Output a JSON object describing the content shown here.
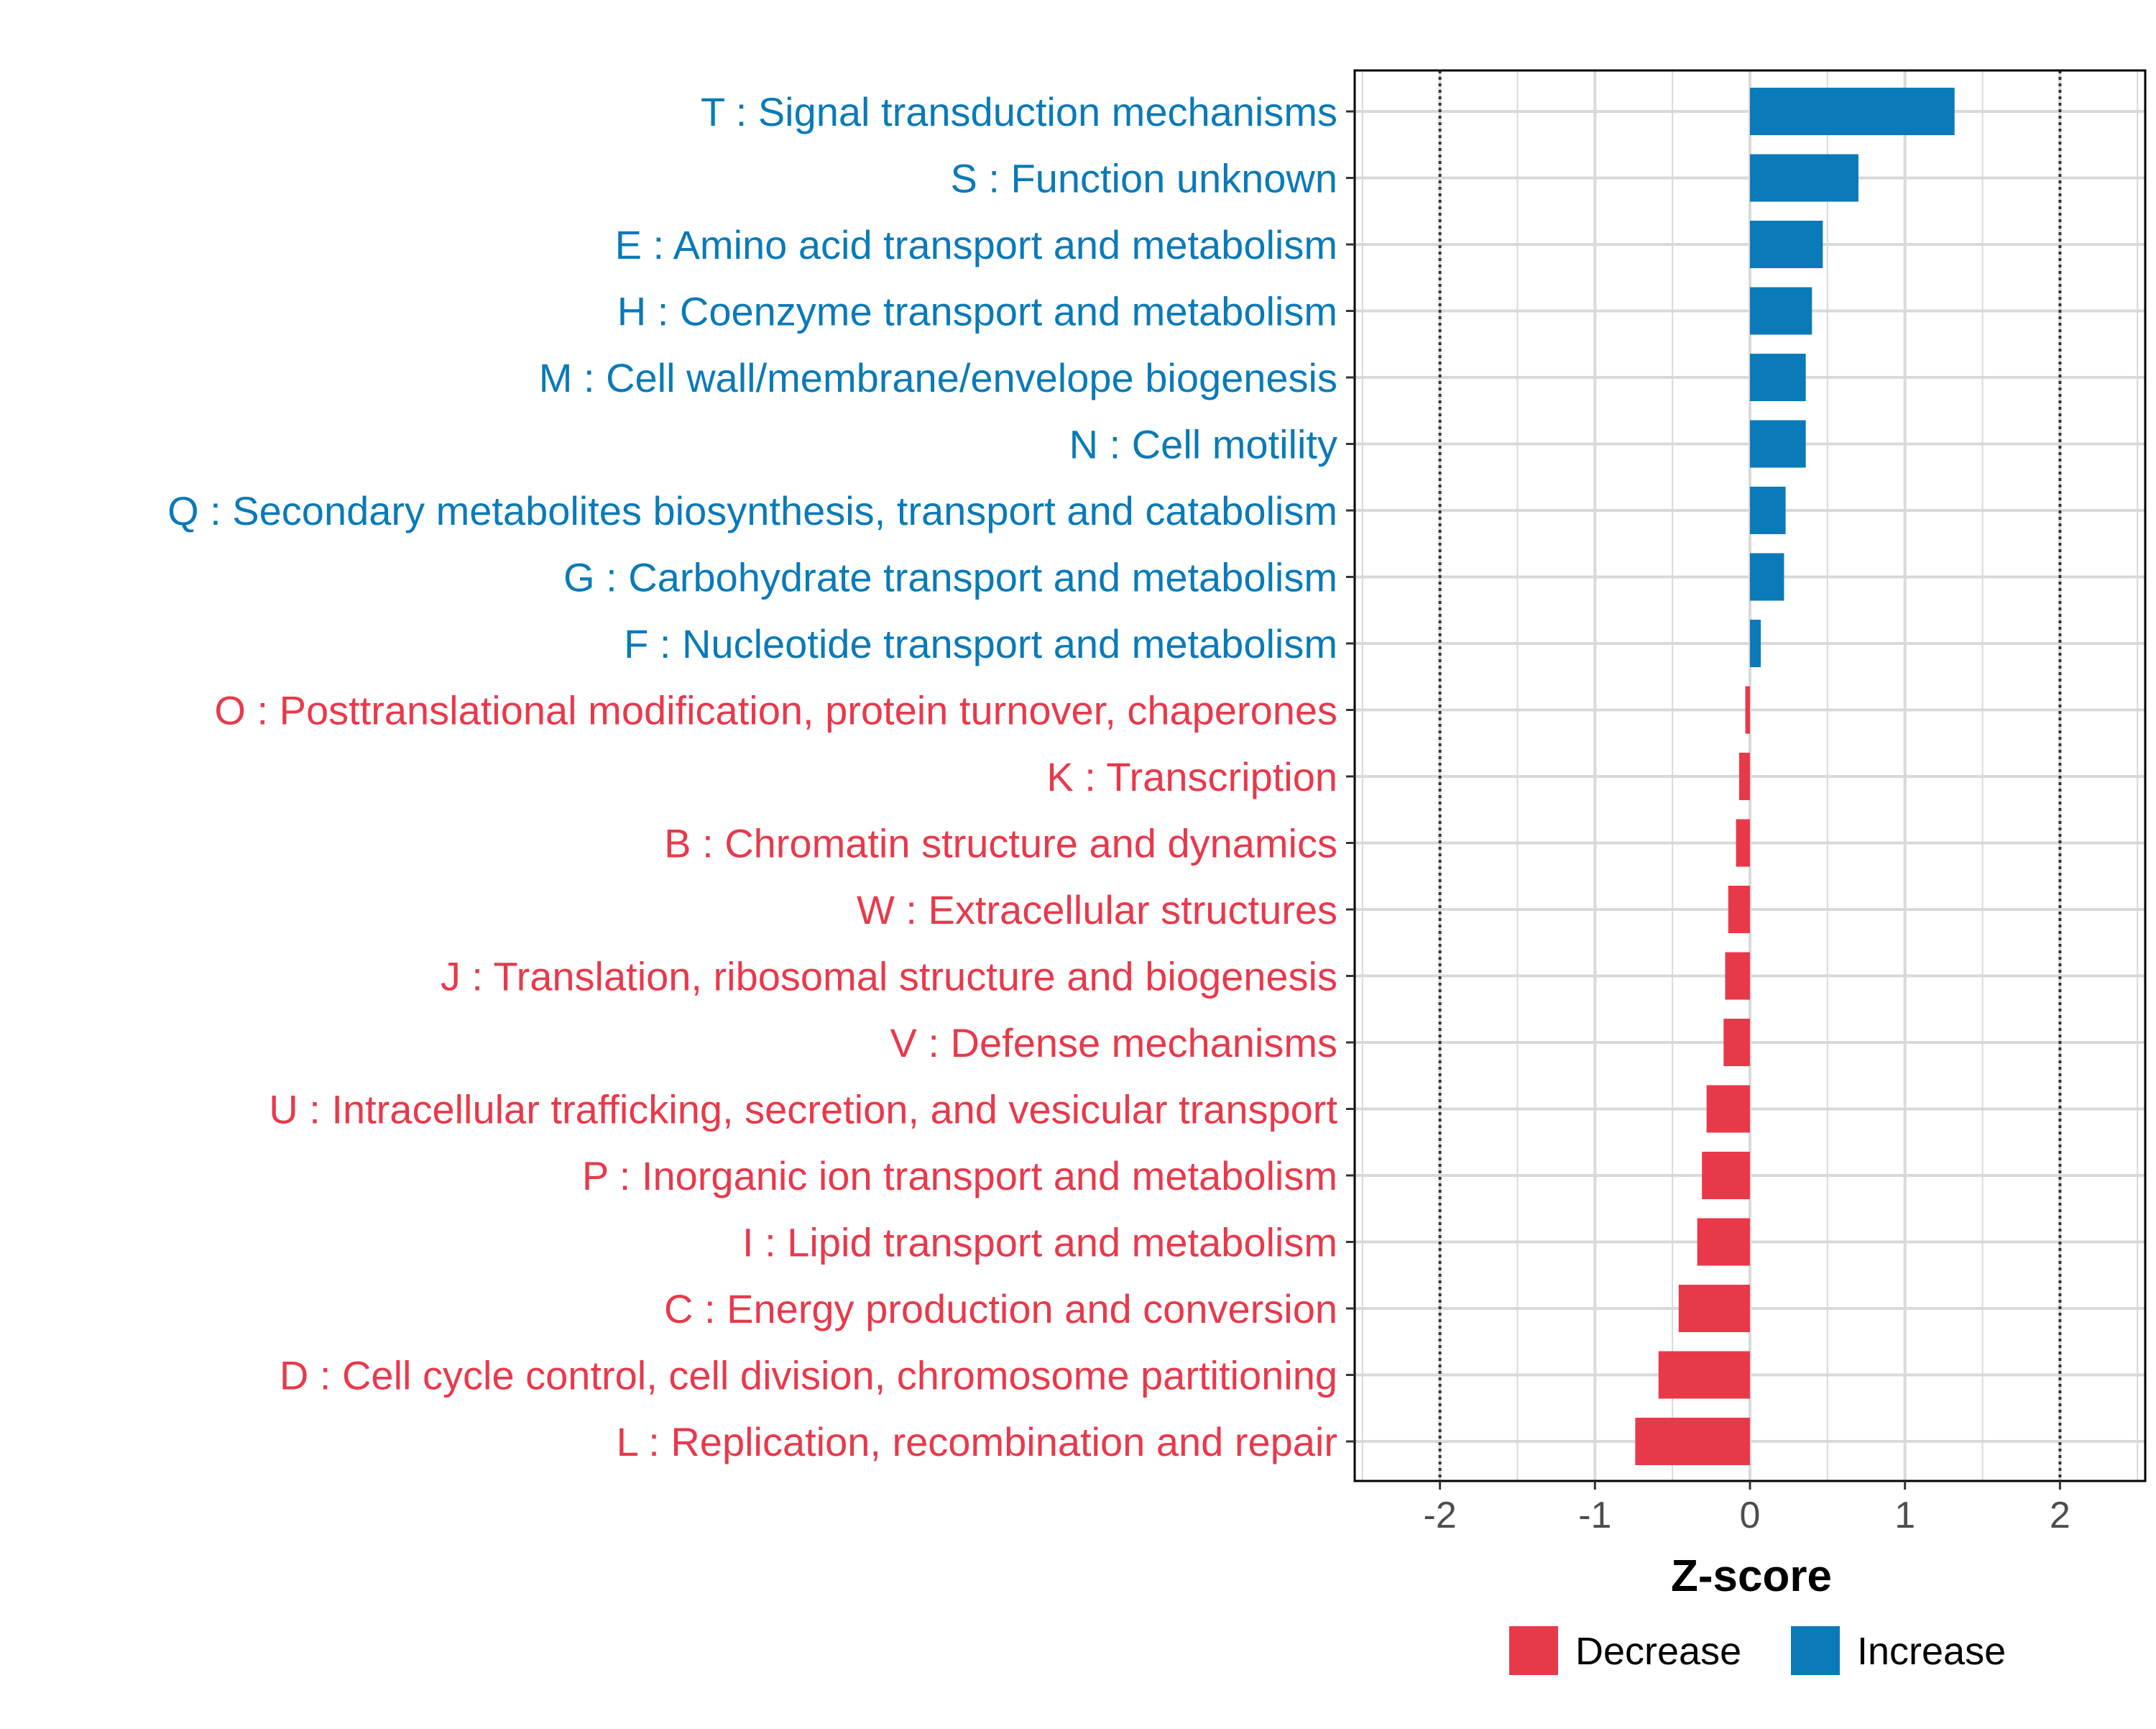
{
  "colors": {
    "increase": "#0a7ab8",
    "decrease": "#e8394b",
    "grid": "#d9d9d9",
    "axis_text": "#4d4d4d",
    "reference_line": "#333333",
    "panel_border": "#000000"
  },
  "chart_data": {
    "type": "bar",
    "orientation": "horizontal",
    "title": "",
    "xlabel": "Z-score",
    "ylabel": "",
    "xlim": [
      -2.55,
      2.55
    ],
    "x_ticks": [
      -2,
      -1,
      0,
      1,
      2
    ],
    "x_tick_labels": [
      "-2",
      "-1",
      "0",
      "1",
      "2"
    ],
    "reference_lines": [
      -2,
      2
    ],
    "grid": true,
    "legend": {
      "position": "bottom",
      "entries": [
        {
          "label": "Decrease",
          "color_key": "decrease"
        },
        {
          "label": "Increase",
          "color_key": "increase"
        }
      ]
    },
    "categories": [
      "T : Signal transduction mechanisms",
      "S : Function unknown",
      "E : Amino acid transport and metabolism",
      "H : Coenzyme transport and metabolism",
      "M : Cell wall/membrane/envelope biogenesis",
      "N : Cell motility",
      "Q : Secondary metabolites biosynthesis, transport and catabolism",
      "G : Carbohydrate transport and metabolism",
      "F : Nucleotide transport and metabolism",
      "O : Posttranslational modification, protein turnover, chaperones",
      "K : Transcription",
      "B : Chromatin structure and dynamics",
      "W : Extracellular structures",
      "J : Translation, ribosomal structure and biogenesis",
      "V : Defense mechanisms",
      "U : Intracellular trafficking, secretion, and vesicular transport",
      "P : Inorganic ion transport and metabolism",
      "I : Lipid transport and metabolism",
      "C : Energy production and conversion",
      "D : Cell cycle control, cell division, chromosome partitioning",
      "L : Replication, recombination and repair"
    ],
    "values": [
      1.32,
      0.7,
      0.47,
      0.4,
      0.36,
      0.36,
      0.23,
      0.22,
      0.07,
      -0.03,
      -0.07,
      -0.09,
      -0.14,
      -0.16,
      -0.17,
      -0.28,
      -0.31,
      -0.34,
      -0.46,
      -0.59,
      -0.74
    ],
    "direction": [
      "Increase",
      "Increase",
      "Increase",
      "Increase",
      "Increase",
      "Increase",
      "Increase",
      "Increase",
      "Increase",
      "Decrease",
      "Decrease",
      "Decrease",
      "Decrease",
      "Decrease",
      "Decrease",
      "Decrease",
      "Decrease",
      "Decrease",
      "Decrease",
      "Decrease",
      "Decrease"
    ]
  }
}
